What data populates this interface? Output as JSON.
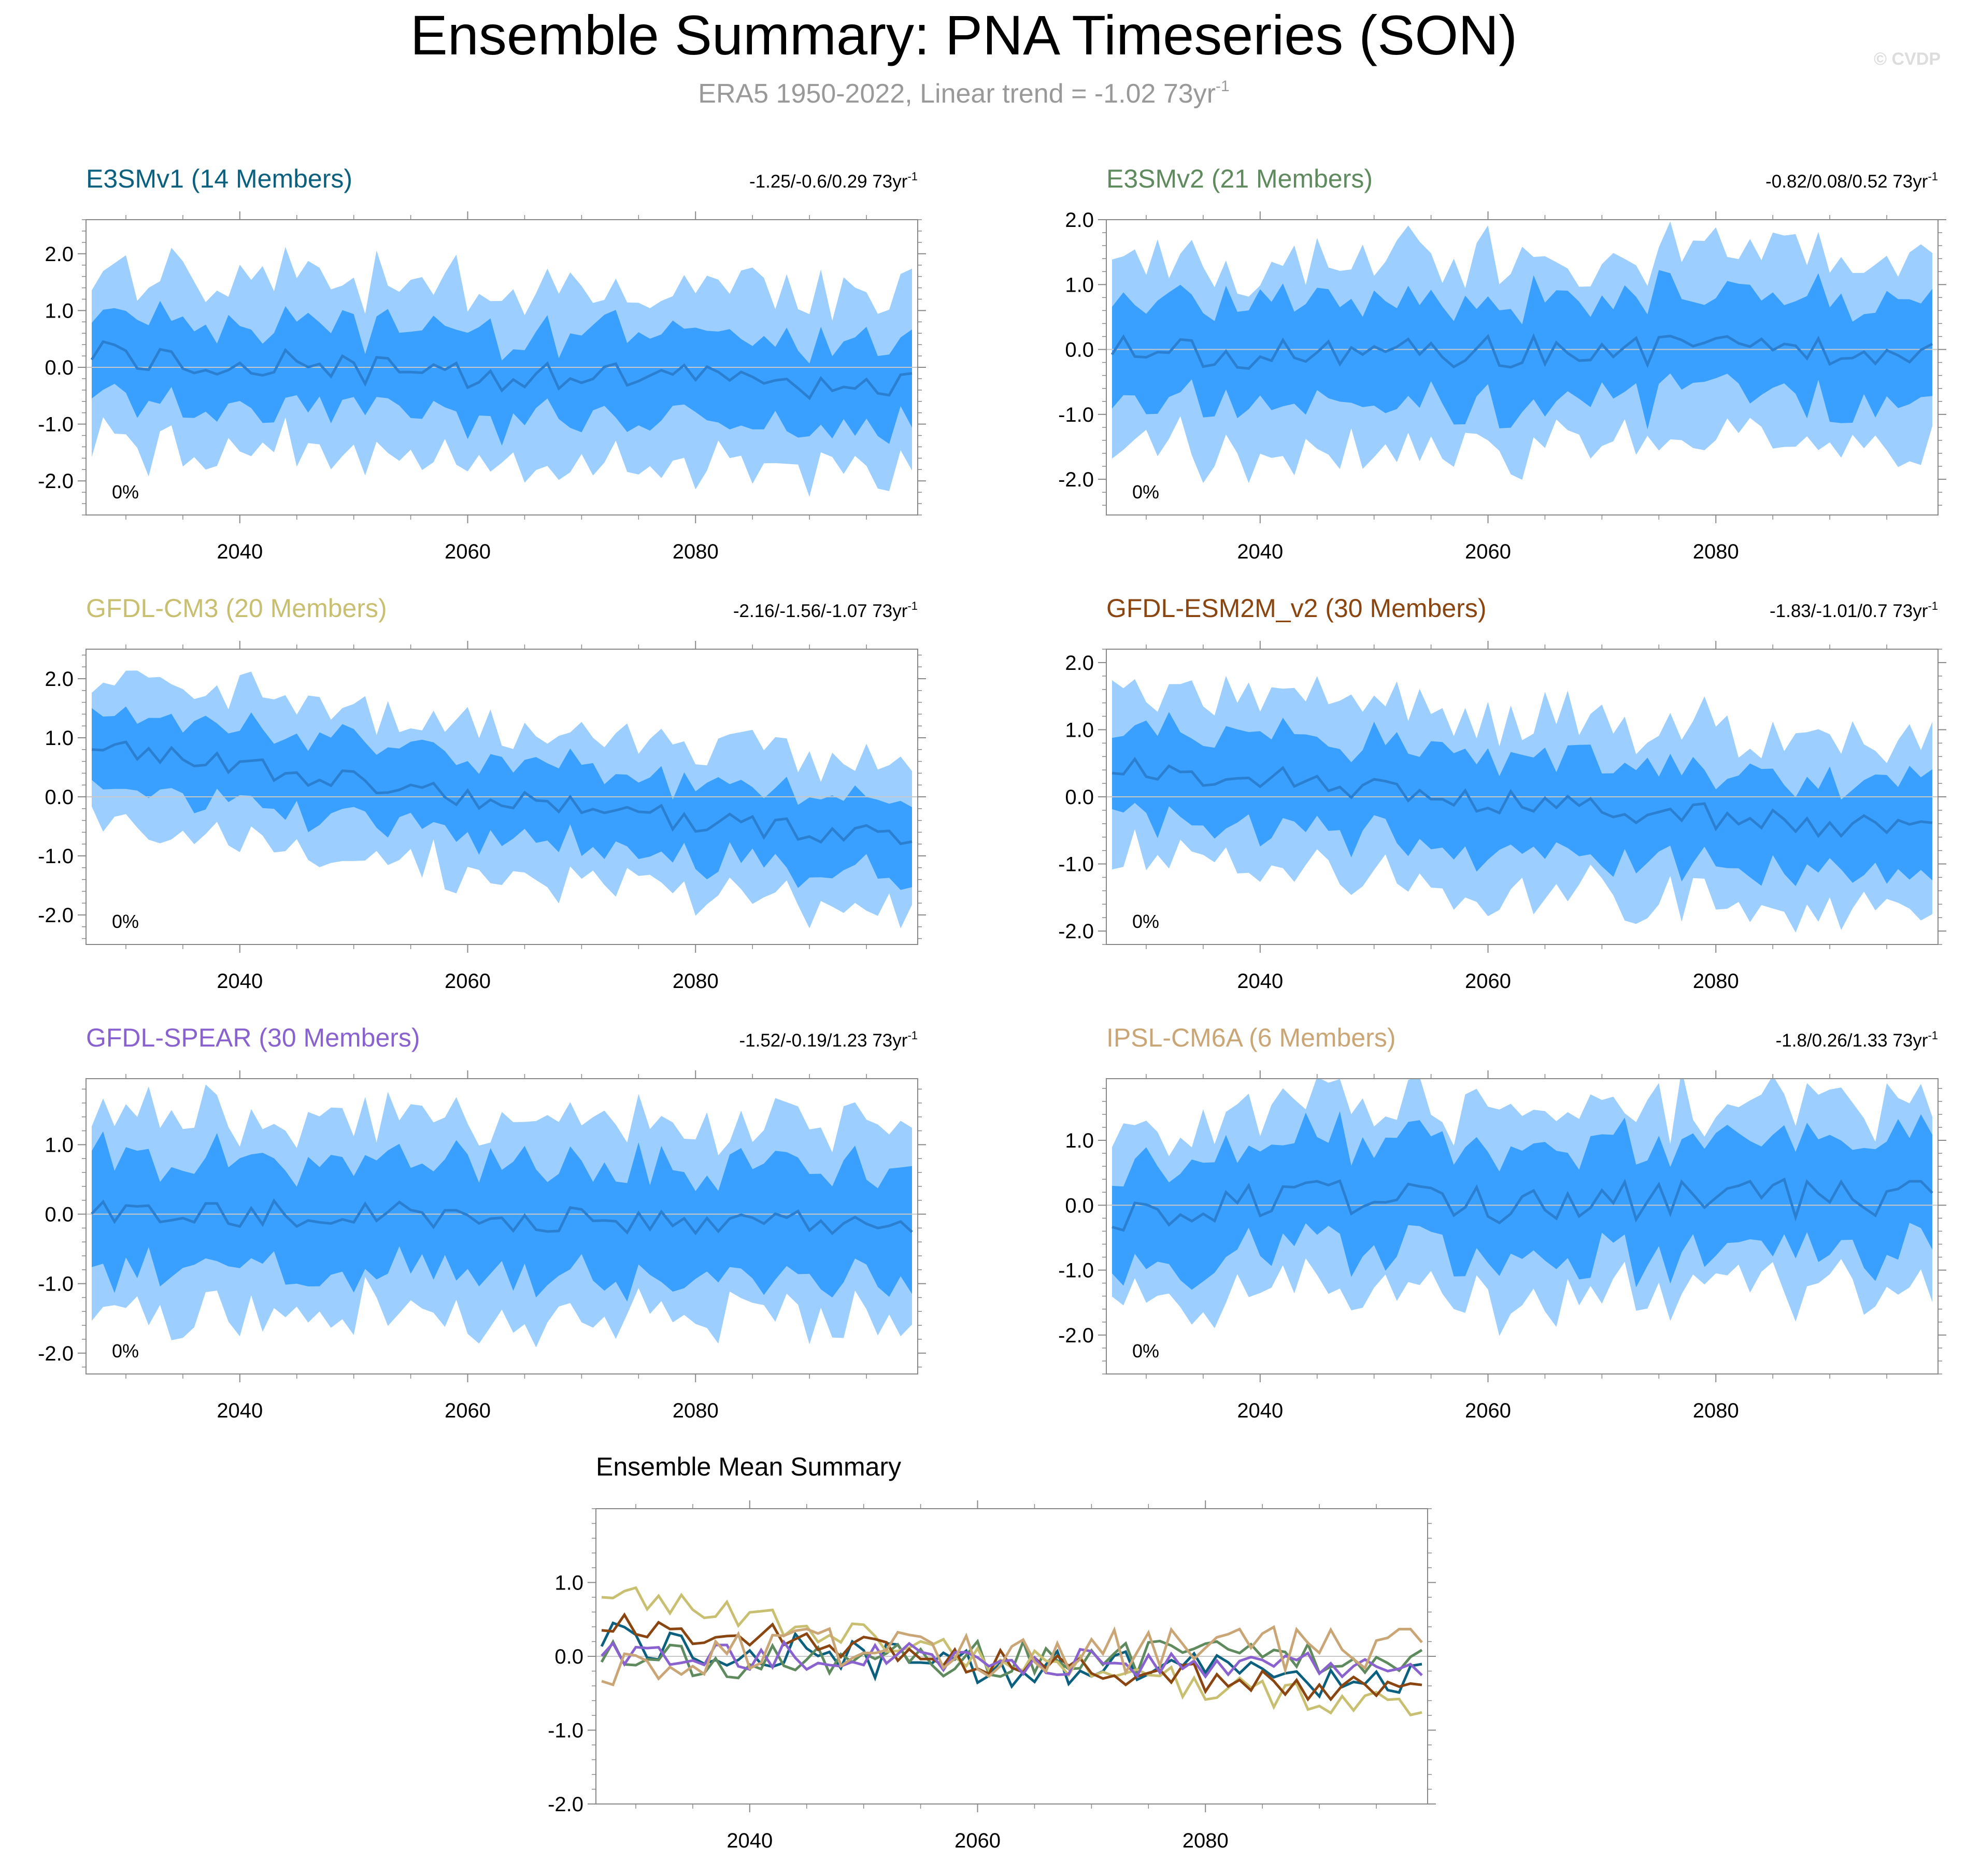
{
  "title": "Ensemble Summary: PNA Timeseries (SON)",
  "subtitle": {
    "text": "ERA5 1950-2022, Linear trend = -1.02 73yr",
    "sup": "-1"
  },
  "watermark": "© CVDP",
  "colors": {
    "band_outer": "#9ccfff",
    "band_inner": "#3aa0ff",
    "mean_line": "#2b7fd0",
    "zero_line": "#c8c8c8",
    "title": "#000000",
    "subtitle": "#999999",
    "watermark": "#dddddd"
  },
  "chart_data": [
    {
      "type": "area",
      "title": "E3SMv1 (14 Members)",
      "title_color": "#0b6080",
      "trend": "-1.25/-0.6/0.29 73yr",
      "trend_sup": "-1",
      "pct": "0%",
      "ylim": [
        -2.6,
        2.6
      ],
      "yticks": [
        2.0,
        1.0,
        0.0,
        -1.0,
        -2.0
      ],
      "ytick_labels": [
        "2.0",
        "1.0",
        "0.0",
        "-1.0",
        "-2.0"
      ],
      "xlim": [
        2026.5,
        2099.5
      ],
      "xticks": [
        2040,
        2060,
        2080
      ],
      "xtick_labels": [
        "2040",
        "2060",
        "2080"
      ],
      "mean_anchors": [
        0.28,
        0.1,
        0.05,
        -0.05,
        -0.12,
        -0.2,
        -0.22,
        -0.25,
        -0.3,
        -0.35
      ],
      "amplitude": 0.28,
      "inner_half": 0.75,
      "outer_half": 1.55,
      "seed": 11
    },
    {
      "type": "area",
      "title": "E3SMv2 (21 Members)",
      "title_color": "#5e8a5e",
      "trend": "-0.82/0.08/0.52 73yr",
      "trend_sup": "-1",
      "pct": "0%",
      "ylim": [
        -2.55,
        2.0
      ],
      "yticks": [
        2.0,
        1.0,
        0.0,
        -1.0,
        -2.0
      ],
      "ytick_labels": [
        "2.0",
        "1.0",
        "0.0",
        "-1.0",
        "-2.0"
      ],
      "xlim": [
        2026.5,
        2099.5
      ],
      "xticks": [
        2040,
        2060,
        2080
      ],
      "xtick_labels": [
        "2040",
        "2060",
        "2080"
      ],
      "mean_anchors": [
        0.05,
        -0.05,
        -0.08,
        0.0,
        -0.05,
        0.0,
        -0.02,
        0.02,
        -0.02,
        0.05
      ],
      "amplitude": 0.25,
      "inner_half": 0.8,
      "outer_half": 1.45,
      "seed": 23
    },
    {
      "type": "area",
      "title": "GFDL-CM3 (20 Members)",
      "title_color": "#c8c070",
      "trend": "-2.16/-1.56/-1.07 73yr",
      "trend_sup": "-1",
      "pct": "0%",
      "ylim": [
        -2.5,
        2.5
      ],
      "yticks": [
        2.0,
        1.0,
        0.0,
        -1.0,
        -2.0
      ],
      "ytick_labels": [
        "2.0",
        "1.0",
        "0.0",
        "-1.0",
        "-2.0"
      ],
      "xlim": [
        2026.5,
        2099.5
      ],
      "xticks": [
        2040,
        2060,
        2080
      ],
      "xtick_labels": [
        "2040",
        "2060",
        "2080"
      ],
      "mean_anchors": [
        0.9,
        0.7,
        0.45,
        0.2,
        0.05,
        -0.15,
        -0.3,
        -0.45,
        -0.6,
        -0.75
      ],
      "amplitude": 0.2,
      "inner_half": 0.65,
      "outer_half": 1.25,
      "seed": 37
    },
    {
      "type": "area",
      "title": "GFDL-ESM2M_v2 (30 Members)",
      "title_color": "#8a4510",
      "trend": "-1.83/-1.01/0.7 73yr",
      "trend_sup": "-1",
      "pct": "0%",
      "ylim": [
        -2.2,
        2.2
      ],
      "yticks": [
        2.0,
        1.0,
        0.0,
        -1.0,
        -2.0
      ],
      "ytick_labels": [
        "2.0",
        "1.0",
        "0.0",
        "-1.0",
        "-2.0"
      ],
      "xlim": [
        2026.5,
        2099.5
      ],
      "xticks": [
        2040,
        2060,
        2080
      ],
      "xtick_labels": [
        "2040",
        "2060",
        "2080"
      ],
      "mean_anchors": [
        0.45,
        0.35,
        0.25,
        0.1,
        -0.05,
        -0.15,
        -0.25,
        -0.35,
        -0.45,
        -0.45
      ],
      "amplitude": 0.2,
      "inner_half": 0.7,
      "outer_half": 1.3,
      "seed": 53
    },
    {
      "type": "area",
      "title": "GFDL-SPEAR (30 Members)",
      "title_color": "#8a62d0",
      "trend": "-1.52/-0.19/1.23 73yr",
      "trend_sup": "-1",
      "pct": "0%",
      "ylim": [
        -2.3,
        1.95
      ],
      "yticks": [
        1.0,
        0.0,
        -1.0,
        -2.0
      ],
      "ytick_labels": [
        "1.0",
        "0.0",
        "-1.0",
        "-2.0"
      ],
      "xlim": [
        2026.5,
        2099.5
      ],
      "xticks": [
        2040,
        2060,
        2080
      ],
      "xtick_labels": [
        "2040",
        "2060",
        "2080"
      ],
      "mean_anchors": [
        0.1,
        0.05,
        0.0,
        0.0,
        -0.05,
        -0.05,
        -0.08,
        -0.1,
        -0.1,
        -0.1
      ],
      "amplitude": 0.2,
      "inner_half": 0.8,
      "outer_half": 1.4,
      "seed": 71
    },
    {
      "type": "area",
      "title": "IPSL-CM6A (6 Members)",
      "title_color": "#caa677",
      "trend": "-1.8/0.26/1.33 73yr",
      "trend_sup": "-1",
      "pct": "0%",
      "ylim": [
        -2.6,
        1.95
      ],
      "yticks": [
        1.0,
        0.0,
        -1.0,
        -2.0
      ],
      "ytick_labels": [
        "1.0",
        "0.0",
        "-1.0",
        "-2.0"
      ],
      "xlim": [
        2026.5,
        2099.5
      ],
      "xticks": [
        2040,
        2060,
        2080
      ],
      "xtick_labels": [
        "2040",
        "2060",
        "2080"
      ],
      "mean_anchors": [
        -0.2,
        0.0,
        0.1,
        0.05,
        0.0,
        0.05,
        0.08,
        0.1,
        0.12,
        0.1
      ],
      "amplitude": 0.3,
      "inner_half": 0.85,
      "outer_half": 1.4,
      "seed": 97
    },
    {
      "type": "line",
      "title": "Ensemble Mean Summary",
      "ylim": [
        -2.0,
        2.0
      ],
      "yticks": [
        1.0,
        0.0,
        -1.0,
        -2.0
      ],
      "ytick_labels": [
        "1.0",
        "0.0",
        "-1.0",
        "-2.0"
      ],
      "xlim": [
        2026.5,
        2099.5
      ],
      "xticks": [
        2040,
        2060,
        2080
      ],
      "xtick_labels": [
        "2040",
        "2060",
        "2080"
      ],
      "series": [
        {
          "name": "E3SMv1",
          "color": "#0b6080"
        },
        {
          "name": "E3SMv2",
          "color": "#5e8a5e"
        },
        {
          "name": "GFDL-CM3",
          "color": "#c8c070"
        },
        {
          "name": "GFDL-ESM2M_v2",
          "color": "#8a4510"
        },
        {
          "name": "GFDL-SPEAR",
          "color": "#8a62d0"
        },
        {
          "name": "IPSL-CM6A",
          "color": "#caa677"
        }
      ]
    }
  ]
}
